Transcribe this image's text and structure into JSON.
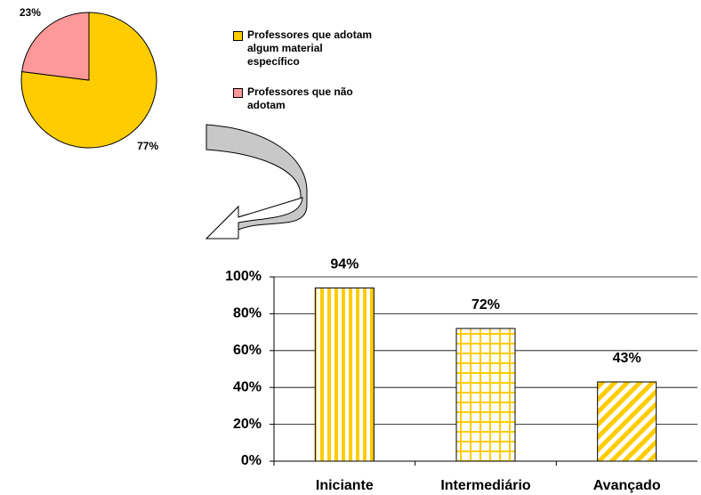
{
  "chart_data": [
    {
      "type": "pie",
      "categories": [
        "Professores que adotam algum material específico",
        "Professores que não adotam"
      ],
      "values": [
        77,
        23
      ],
      "value_labels": [
        "77%",
        "23%"
      ],
      "colors": [
        "#FFCC00",
        "#FF9999"
      ]
    },
    {
      "type": "bar",
      "categories": [
        "Iniciante",
        "Intermediário",
        "Avançado"
      ],
      "values": [
        94,
        72,
        43
      ],
      "value_labels": [
        "94%",
        "72%",
        "43%"
      ],
      "color": "#FFCC00",
      "patterns": [
        "vertical",
        "grid",
        "diagonal"
      ],
      "ylim": [
        0,
        100
      ],
      "yticks": [
        {
          "value": 0,
          "label": "0%"
        },
        {
          "value": 20,
          "label": "20%"
        },
        {
          "value": 40,
          "label": "40%"
        },
        {
          "value": 60,
          "label": "60%"
        },
        {
          "value": 80,
          "label": "80%"
        },
        {
          "value": 100,
          "label": "100%"
        }
      ],
      "grid": true
    }
  ]
}
